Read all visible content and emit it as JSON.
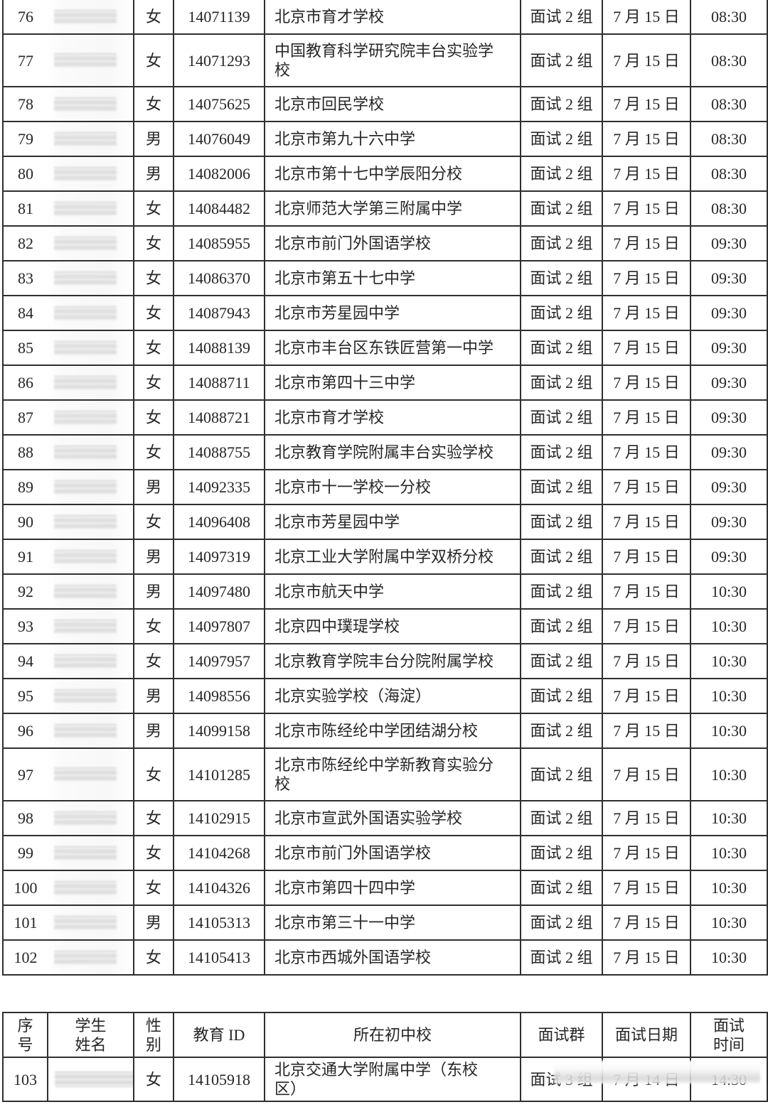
{
  "colors": {
    "border": "#2f2f2f",
    "text": "#262626",
    "background": "#ffffff"
  },
  "headers": {
    "seq": "序\n号",
    "name": "学生\n姓名",
    "gender": "性\n别",
    "edu_id": "教育 ID",
    "school": "所在初中校",
    "group": "面试群",
    "date": "面试日期",
    "time": "面试\n时间"
  },
  "main_table": {
    "rows": [
      {
        "seq": "76",
        "gender": "女",
        "edu_id": "14071139",
        "school": "北京市育才学校",
        "group": "面试 2 组",
        "date": "7 月 15 日",
        "time": "08:30"
      },
      {
        "seq": "77",
        "gender": "女",
        "edu_id": "14071293",
        "school": "中国教育科学研究院丰台实验学校",
        "group": "面试 2 组",
        "date": "7 月 15 日",
        "time": "08:30"
      },
      {
        "seq": "78",
        "gender": "女",
        "edu_id": "14075625",
        "school": "北京市回民学校",
        "group": "面试 2 组",
        "date": "7 月 15 日",
        "time": "08:30"
      },
      {
        "seq": "79",
        "gender": "男",
        "edu_id": "14076049",
        "school": "北京市第九十六中学",
        "group": "面试 2 组",
        "date": "7 月 15 日",
        "time": "08:30"
      },
      {
        "seq": "80",
        "gender": "男",
        "edu_id": "14082006",
        "school": "北京市第十七中学辰阳分校",
        "group": "面试 2 组",
        "date": "7 月 15 日",
        "time": "08:30"
      },
      {
        "seq": "81",
        "gender": "女",
        "edu_id": "14084482",
        "school": "北京师范大学第三附属中学",
        "group": "面试 2 组",
        "date": "7 月 15 日",
        "time": "08:30"
      },
      {
        "seq": "82",
        "gender": "女",
        "edu_id": "14085955",
        "school": "北京市前门外国语学校",
        "group": "面试 2 组",
        "date": "7 月 15 日",
        "time": "09:30"
      },
      {
        "seq": "83",
        "gender": "女",
        "edu_id": "14086370",
        "school": "北京市第五十七中学",
        "group": "面试 2 组",
        "date": "7 月 15 日",
        "time": "09:30"
      },
      {
        "seq": "84",
        "gender": "女",
        "edu_id": "14087943",
        "school": "北京市芳星园中学",
        "group": "面试 2 组",
        "date": "7 月 15 日",
        "time": "09:30"
      },
      {
        "seq": "85",
        "gender": "女",
        "edu_id": "14088139",
        "school": "北京市丰台区东铁匠营第一中学",
        "group": "面试 2 组",
        "date": "7 月 15 日",
        "time": "09:30"
      },
      {
        "seq": "86",
        "gender": "女",
        "edu_id": "14088711",
        "school": "北京市第四十三中学",
        "group": "面试 2 组",
        "date": "7 月 15 日",
        "time": "09:30"
      },
      {
        "seq": "87",
        "gender": "女",
        "edu_id": "14088721",
        "school": "北京市育才学校",
        "group": "面试 2 组",
        "date": "7 月 15 日",
        "time": "09:30"
      },
      {
        "seq": "88",
        "gender": "女",
        "edu_id": "14088755",
        "school": "北京教育学院附属丰台实验学校",
        "group": "面试 2 组",
        "date": "7 月 15 日",
        "time": "09:30"
      },
      {
        "seq": "89",
        "gender": "男",
        "edu_id": "14092335",
        "school": "北京市十一学校一分校",
        "group": "面试 2 组",
        "date": "7 月 15 日",
        "time": "09:30"
      },
      {
        "seq": "90",
        "gender": "女",
        "edu_id": "14096408",
        "school": "北京市芳星园中学",
        "group": "面试 2 组",
        "date": "7 月 15 日",
        "time": "09:30"
      },
      {
        "seq": "91",
        "gender": "男",
        "edu_id": "14097319",
        "school": "北京工业大学附属中学双桥分校",
        "group": "面试 2 组",
        "date": "7 月 15 日",
        "time": "09:30"
      },
      {
        "seq": "92",
        "gender": "男",
        "edu_id": "14097480",
        "school": "北京市航天中学",
        "group": "面试 2 组",
        "date": "7 月 15 日",
        "time": "10:30"
      },
      {
        "seq": "93",
        "gender": "女",
        "edu_id": "14097807",
        "school": "北京四中璞瑅学校",
        "group": "面试 2 组",
        "date": "7 月 15 日",
        "time": "10:30"
      },
      {
        "seq": "94",
        "gender": "女",
        "edu_id": "14097957",
        "school": "北京教育学院丰台分院附属学校",
        "group": "面试 2 组",
        "date": "7 月 15 日",
        "time": "10:30"
      },
      {
        "seq": "95",
        "gender": "男",
        "edu_id": "14098556",
        "school": "北京实验学校（海淀）",
        "group": "面试 2 组",
        "date": "7 月 15 日",
        "time": "10:30"
      },
      {
        "seq": "96",
        "gender": "男",
        "edu_id": "14099158",
        "school": "北京市陈经纶中学团结湖分校",
        "group": "面试 2 组",
        "date": "7 月 15 日",
        "time": "10:30"
      },
      {
        "seq": "97",
        "gender": "女",
        "edu_id": "14101285",
        "school": "北京市陈经纶中学新教育实验分校",
        "group": "面试 2 组",
        "date": "7 月 15 日",
        "time": "10:30"
      },
      {
        "seq": "98",
        "gender": "女",
        "edu_id": "14102915",
        "school": "北京市宣武外国语实验学校",
        "group": "面试 2 组",
        "date": "7 月 15 日",
        "time": "10:30"
      },
      {
        "seq": "99",
        "gender": "女",
        "edu_id": "14104268",
        "school": "北京市前门外国语学校",
        "group": "面试 2 组",
        "date": "7 月 15 日",
        "time": "10:30"
      },
      {
        "seq": "100",
        "gender": "女",
        "edu_id": "14104326",
        "school": "北京市第四十四中学",
        "group": "面试 2 组",
        "date": "7 月 15 日",
        "time": "10:30"
      },
      {
        "seq": "101",
        "gender": "男",
        "edu_id": "14105313",
        "school": "北京市第三十一中学",
        "group": "面试 2 组",
        "date": "7 月 15 日",
        "time": "10:30"
      },
      {
        "seq": "102",
        "gender": "女",
        "edu_id": "14105413",
        "school": "北京市西城外国语学校",
        "group": "面试 2 组",
        "date": "7 月 15 日",
        "time": "10:30"
      }
    ]
  },
  "continuation": {
    "rows": [
      {
        "seq": "103",
        "gender": "女",
        "edu_id": "14105918",
        "school": "北京交通大学附属中学（东校区）",
        "group": "面试 3 组",
        "date": "7 月 14 日",
        "time": "14:30"
      }
    ]
  }
}
